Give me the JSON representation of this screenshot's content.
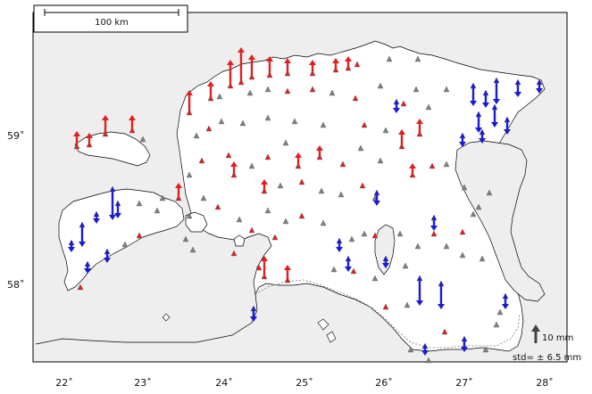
{
  "map": {
    "scale_bar_label": "100 km",
    "lat_labels": [
      {
        "text": "59˚"
      },
      {
        "text": "58˚"
      }
    ],
    "lon_labels": [
      {
        "text": "22˚"
      },
      {
        "text": "23˚"
      },
      {
        "text": "24˚"
      },
      {
        "text": "25˚"
      },
      {
        "text": "26˚"
      },
      {
        "text": "27˚"
      },
      {
        "text": "28˚"
      }
    ],
    "legend": {
      "arrow_label": "10 mm",
      "std_label": "std= ± 6.5 mm",
      "arrow_color": "#444444"
    },
    "colors": {
      "uplift": "#e02020",
      "subsidence": "#1a1ad0",
      "sea": "#ffffff",
      "land_outside": "#eeeeee",
      "lake": "#eeeeee",
      "neutral_marker": "#808080"
    }
  }
}
